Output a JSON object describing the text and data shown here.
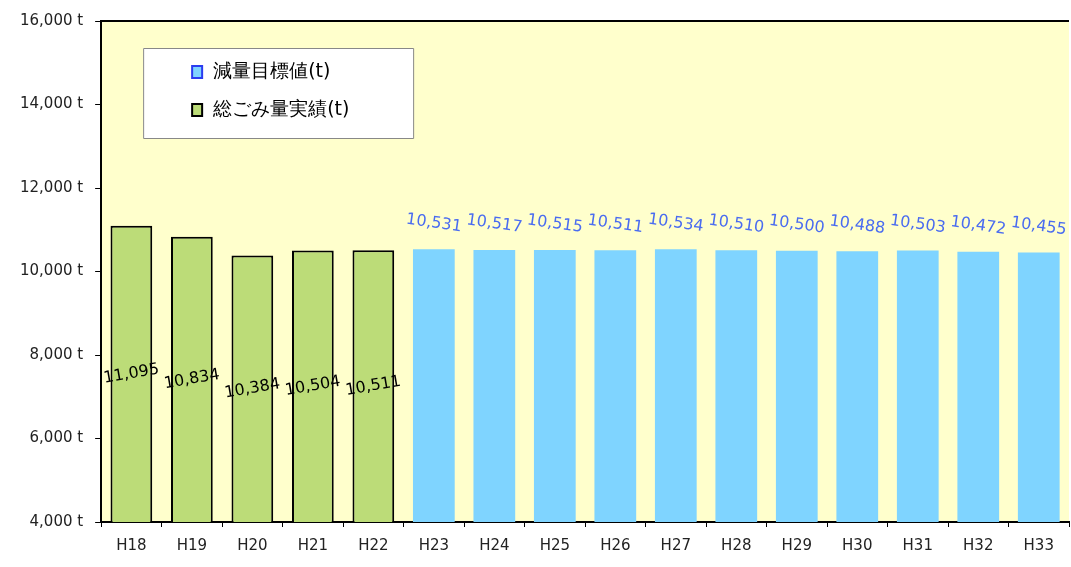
{
  "chart_data": {
    "type": "bar",
    "categories": [
      "H18",
      "H19",
      "H20",
      "H21",
      "H22",
      "H23",
      "H24",
      "H25",
      "H26",
      "H27",
      "H28",
      "H29",
      "H30",
      "H31",
      "H32",
      "H33"
    ],
    "series": [
      {
        "name": "減量目標値(t)",
        "color": "#7fd4ff",
        "values": [
          null,
          null,
          null,
          null,
          null,
          10531,
          10517,
          10515,
          10511,
          10534,
          10510,
          10500,
          10488,
          10503,
          10472,
          10455
        ],
        "value_labels": [
          null,
          null,
          null,
          null,
          null,
          "10,531",
          "10,517",
          "10,515",
          "10,511",
          "10,534",
          "10,510",
          "10,500",
          "10,488",
          "10,503",
          "10,472",
          "10,455"
        ]
      },
      {
        "name": "総ごみ量実績(t)",
        "color": "#bcdc78",
        "values": [
          11095,
          10834,
          10384,
          10504,
          10511,
          null,
          null,
          null,
          null,
          null,
          null,
          null,
          null,
          null,
          null,
          null
        ],
        "value_labels": [
          "11,095",
          "10,834",
          "10,384",
          "10,504",
          "10,511",
          null,
          null,
          null,
          null,
          null,
          null,
          null,
          null,
          null,
          null,
          null
        ]
      }
    ],
    "ylim": [
      4000,
      16000
    ],
    "yticks": [
      {
        "value": 4000,
        "label": "4,000 t"
      },
      {
        "value": 6000,
        "label": "6,000 t"
      },
      {
        "value": 8000,
        "label": "8,000 t"
      },
      {
        "value": 10000,
        "label": "10,000 t"
      },
      {
        "value": 12000,
        "label": "12,000 t"
      },
      {
        "value": 14000,
        "label": "14,000 t"
      },
      {
        "value": 16000,
        "label": "16,000 t"
      }
    ],
    "grid": false,
    "legend": "top left"
  }
}
